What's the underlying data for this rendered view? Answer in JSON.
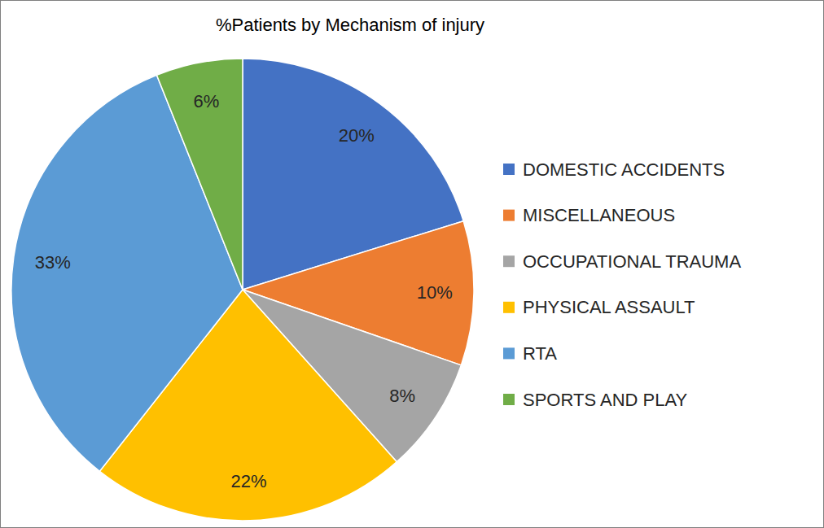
{
  "chart_data": {
    "type": "pie",
    "title": "%Patients by Mechanism of injury",
    "categories": [
      "DOMESTIC ACCIDENTS",
      "MISCELLANEOUS",
      "OCCUPATIONAL TRAUMA",
      "PHYSICAL ASSAULT",
      "RTA",
      "SPORTS AND PLAY"
    ],
    "values": [
      20,
      10,
      8,
      22,
      33,
      6
    ],
    "value_labels": [
      "20%",
      "10%",
      "8%",
      "22%",
      "33%",
      "6%"
    ],
    "colors": [
      "#4472c4",
      "#ed7d31",
      "#a5a5a5",
      "#ffc000",
      "#5b9bd5",
      "#70ad47"
    ],
    "data_labels": true,
    "legend": "right"
  }
}
